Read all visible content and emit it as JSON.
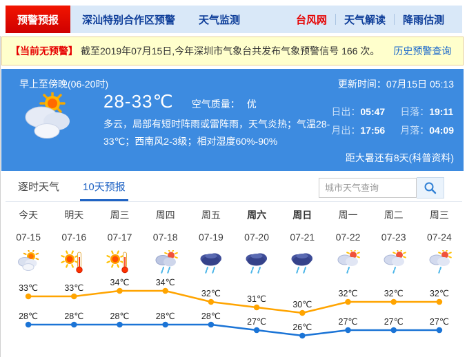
{
  "nav": {
    "tabs": [
      {
        "label": "预警预报"
      },
      {
        "label": "深汕特别合作区预警"
      },
      {
        "label": "天气监测"
      }
    ],
    "links": [
      {
        "label": "台风网"
      },
      {
        "label": "天气解读"
      },
      {
        "label": "降雨估测"
      }
    ]
  },
  "alert": {
    "badge": "【当前无预警】",
    "text": "截至2019年07月15日,今年深圳市气象台共发布气象预警信号 166 次。",
    "link": "历史预警查询"
  },
  "panel": {
    "period": "早上至傍晚(06-20时)",
    "update_time": "更新时间：07月15日 05:13",
    "temp_range": "28-33℃",
    "air_quality_label": "空气质量：",
    "air_quality_value": "优",
    "description": "多云，局部有短时阵雨或雷阵雨，天气炎热；气温28-33℃；西南风2-3级；相对湿度60%-90%",
    "sun_moon": [
      {
        "label": "日出：",
        "value": "05:47"
      },
      {
        "label": "日落：",
        "value": "19:11"
      },
      {
        "label": "月出：",
        "value": "17:56"
      },
      {
        "label": "月落：",
        "value": "04:09"
      }
    ],
    "note": "距大暑还有8天(科普资料)"
  },
  "tabs": {
    "hourly": "逐时天气",
    "tenday": "10天预报"
  },
  "search": {
    "placeholder": "城市天气查询"
  },
  "chart_data": {
    "type": "line",
    "title": "10天预报",
    "categories": [
      "今天",
      "明天",
      "周三",
      "周四",
      "周五",
      "周六",
      "周日",
      "周一",
      "周二",
      "周三"
    ],
    "dates": [
      "07-15",
      "07-16",
      "07-17",
      "07-18",
      "07-19",
      "07-20",
      "07-21",
      "07-22",
      "07-23",
      "07-24"
    ],
    "icons": [
      "partly-cloudy",
      "hot",
      "hot",
      "sun-rain",
      "rain",
      "rain",
      "rain",
      "sun-shower",
      "sun-shower",
      "sun-shower"
    ],
    "bold_indices": [
      5,
      6
    ],
    "unit": "℃",
    "series": [
      {
        "name": "high",
        "color": "#ffa400",
        "values": [
          33,
          33,
          34,
          34,
          32,
          31,
          30,
          32,
          32,
          32
        ]
      },
      {
        "name": "low",
        "color": "#1b74d6",
        "values": [
          28,
          28,
          28,
          28,
          28,
          27,
          26,
          27,
          27,
          27
        ]
      }
    ],
    "ylim": [
      24,
      36
    ],
    "legend": "none",
    "grid": false
  },
  "colors": {
    "accent_red": "#e60000",
    "panel_blue": "#3d8be0",
    "nav_bg": "#d9e8f8",
    "nav_text": "#0d3d99",
    "link_blue": "#1464cc",
    "tab_active": "#1f63c4",
    "high_line": "#ffa400",
    "low_line": "#1b74d6",
    "alert_bg": "#ffffcc"
  }
}
